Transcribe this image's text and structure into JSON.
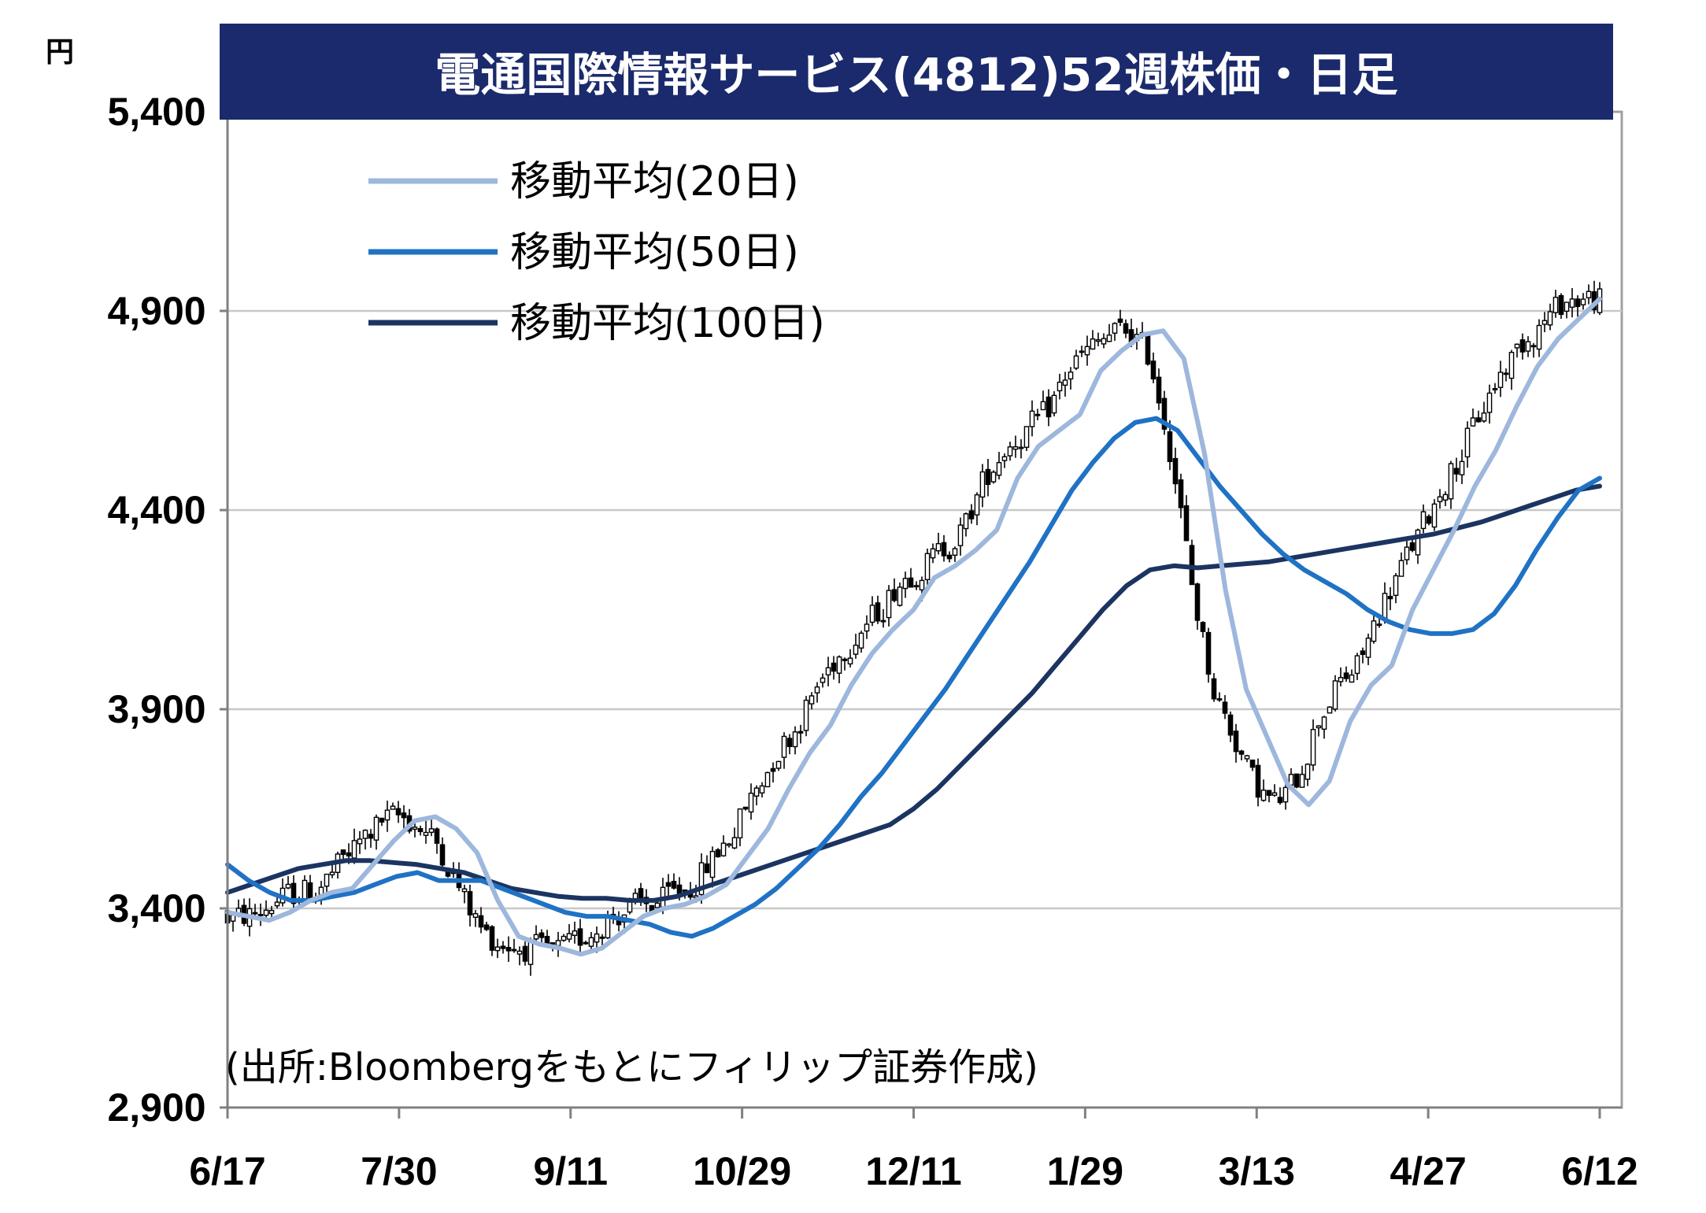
{
  "chart_data": {
    "type": "candlestick",
    "title": "電通国際情報サービス(4812)52週株価・日足",
    "ylabel": "円",
    "source": "(出所:Bloombergをもとにフィリップ証券作成)",
    "ylim": [
      2900,
      5400
    ],
    "yticks": [
      "5,400",
      "4,900",
      "4,400",
      "3,900",
      "3,400",
      "2,900"
    ],
    "ytick_values": [
      5400,
      4900,
      4400,
      3900,
      3400,
      2900
    ],
    "xticks": [
      "6/17",
      "7/30",
      "9/11",
      "10/29",
      "12/11",
      "1/29",
      "3/13",
      "4/27",
      "6/12"
    ],
    "grid": "horizontal",
    "legend_position": "top-left",
    "colors": {
      "title_bg": "#1a2a6c",
      "ma20": "#9db7dd",
      "ma50": "#1f72c4",
      "ma100": "#1b3461",
      "grid": "#c8c8c8",
      "candle": "#000000"
    },
    "series": [
      {
        "name": "移動平均(20日)",
        "key": "ma20",
        "values": [
          3390,
          3380,
          3370,
          3390,
          3420,
          3440,
          3450,
          3510,
          3570,
          3620,
          3630,
          3600,
          3540,
          3420,
          3330,
          3310,
          3300,
          3285,
          3300,
          3340,
          3380,
          3400,
          3410,
          3430,
          3460,
          3530,
          3600,
          3700,
          3790,
          3860,
          3960,
          4040,
          4100,
          4150,
          4230,
          4260,
          4300,
          4350,
          4480,
          4560,
          4600,
          4640,
          4750,
          4800,
          4840,
          4850,
          4780,
          4540,
          4200,
          3950,
          3830,
          3710,
          3660,
          3720,
          3870,
          3960,
          4010,
          4150,
          4250,
          4350,
          4460,
          4550,
          4660,
          4760,
          4830,
          4880,
          4930
        ]
      },
      {
        "name": "移動平均(50日)",
        "key": "ma50",
        "values": [
          3510,
          3470,
          3440,
          3420,
          3420,
          3430,
          3440,
          3460,
          3480,
          3490,
          3470,
          3470,
          3470,
          3450,
          3430,
          3410,
          3390,
          3380,
          3380,
          3370,
          3360,
          3340,
          3330,
          3350,
          3380,
          3410,
          3450,
          3500,
          3550,
          3610,
          3680,
          3740,
          3810,
          3880,
          3950,
          4030,
          4110,
          4190,
          4270,
          4360,
          4450,
          4520,
          4580,
          4620,
          4630,
          4600,
          4530,
          4460,
          4400,
          4340,
          4290,
          4250,
          4220,
          4190,
          4150,
          4120,
          4100,
          4090,
          4090,
          4100,
          4140,
          4210,
          4300,
          4380,
          4450,
          4480
        ]
      },
      {
        "name": "移動平均(100日)",
        "key": "ma100",
        "values": [
          3440,
          3460,
          3480,
          3500,
          3510,
          3520,
          3520,
          3515,
          3510,
          3500,
          3490,
          3470,
          3450,
          3440,
          3430,
          3425,
          3425,
          3420,
          3420,
          3430,
          3450,
          3470,
          3490,
          3510,
          3530,
          3550,
          3570,
          3590,
          3610,
          3650,
          3700,
          3760,
          3820,
          3880,
          3940,
          4010,
          4080,
          4150,
          4210,
          4250,
          4260,
          4255,
          4260,
          4265,
          4270,
          4280,
          4290,
          4300,
          4310,
          4320,
          4330,
          4340,
          4355,
          4370,
          4390,
          4410,
          4430,
          4450,
          4460
        ]
      }
    ]
  }
}
